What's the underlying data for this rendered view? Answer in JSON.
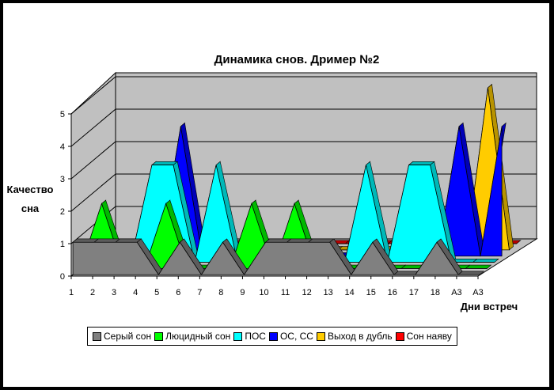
{
  "chart_data": {
    "type": "area",
    "title": "Динамика снов.  Дример №2",
    "xlabel": "Дни встреч",
    "ylabel": [
      "Качество",
      "сна"
    ],
    "ylim": [
      0,
      5
    ],
    "yticks": [
      "0",
      "1",
      "2",
      "3",
      "4",
      "5"
    ],
    "categories": [
      "1",
      "2",
      "3",
      "4",
      "5",
      "6",
      "7",
      "8",
      "9",
      "10",
      "11",
      "12",
      "13",
      "14",
      "15",
      "16",
      "17",
      "18",
      "А3",
      "А3"
    ],
    "series": [
      {
        "name": "Серый сон",
        "color": "#808080",
        "values": [
          1,
          1,
          1,
          1,
          0,
          1,
          0,
          1,
          0,
          1,
          1,
          1,
          1,
          0,
          1,
          0,
          0,
          1,
          0,
          0
        ]
      },
      {
        "name": "Люцидный сон",
        "color": "#00FF00",
        "values": [
          0,
          2,
          0,
          0,
          2,
          0,
          0,
          0,
          2,
          0,
          2,
          0,
          0,
          0,
          0,
          0,
          0,
          0,
          0,
          0
        ]
      },
      {
        "name": "ПОС",
        "color": "#00FFFF",
        "values": [
          0,
          0,
          0,
          3,
          3,
          0,
          3,
          0,
          0,
          0,
          0,
          0,
          0,
          3,
          0,
          3,
          3,
          0,
          0,
          0
        ]
      },
      {
        "name": "ОС, СС",
        "color": "#0000FF",
        "values": [
          0,
          0,
          0,
          0,
          4,
          0,
          0,
          0,
          0,
          0,
          0,
          0,
          0,
          0,
          0,
          0,
          0,
          4,
          0,
          4
        ]
      },
      {
        "name": "Выход в дубль",
        "color": "#FFCC00",
        "values": [
          0,
          0,
          0,
          0,
          0,
          0,
          0,
          0,
          0,
          0,
          0,
          0,
          0,
          0,
          0,
          0,
          0,
          0,
          5,
          0
        ]
      },
      {
        "name": "Сон наяву",
        "color": "#FF0000",
        "values": [
          0,
          0,
          0,
          0,
          0,
          0,
          0,
          0,
          0,
          0,
          0,
          0,
          0,
          0,
          0,
          0,
          0,
          0,
          0,
          0
        ]
      }
    ],
    "grid": true,
    "legend": "bottom"
  }
}
